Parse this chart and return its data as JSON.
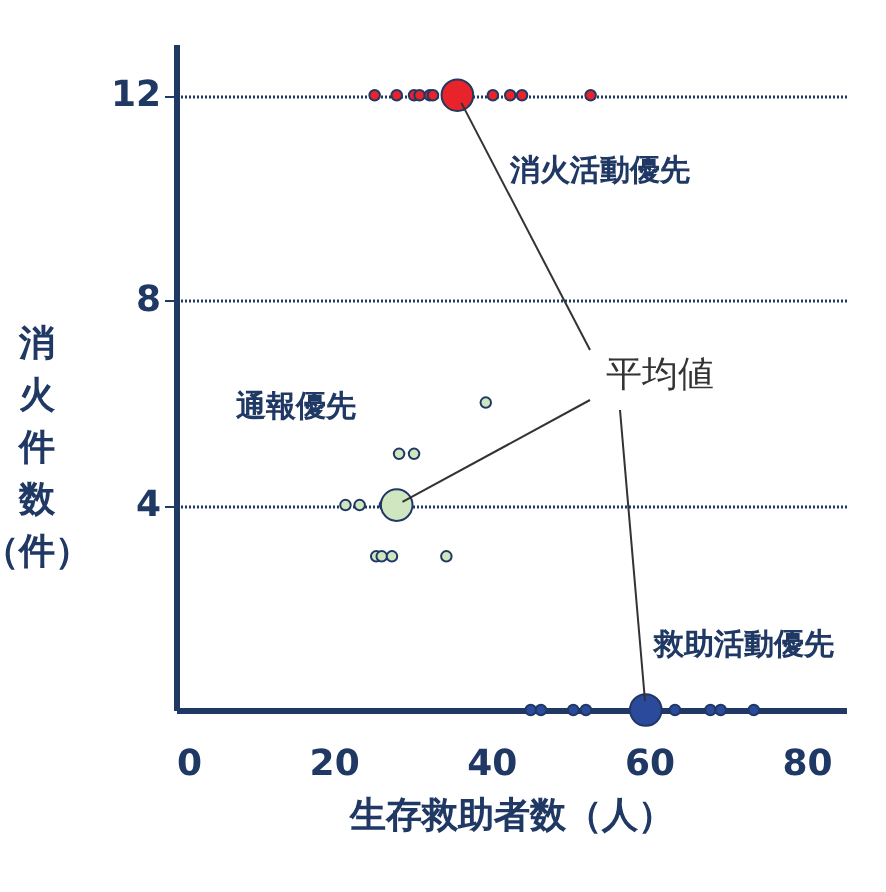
{
  "chart_data": {
    "type": "bubble",
    "xlabel": "生存救助者数（人）",
    "ylabel": "消火件数（件）",
    "xlim": [
      0,
      85
    ],
    "xticks": [
      0,
      20,
      40,
      60,
      80
    ],
    "ylim": [
      0,
      13
    ],
    "yticks": [
      4,
      8,
      12
    ],
    "grid": "y",
    "line_style": "dotted",
    "series": [
      {
        "color": "#e8242a",
        "x": [
          25.2,
          28.0,
          30.2,
          30.9,
          32.2,
          32.6,
          40.2,
          42.4,
          43.9,
          52.6
        ],
        "values": [
          12,
          12,
          12,
          12,
          12,
          12,
          12,
          12,
          12,
          12
        ],
        "sizes": [
          0.11,
          0.11,
          0.11,
          0.11,
          0.11,
          0.11,
          0.11,
          0.11,
          0.11,
          0.11
        ]
      },
      {
        "color": "#e8242a",
        "x": [
          35.7
        ],
        "values": [
          12
        ],
        "sizes": [
          1
        ]
      },
      {
        "color": "#cfe6c1",
        "x": [
          21.5,
          23.3,
          26.5,
          28.3,
          30.2,
          39.3,
          25.4,
          26.1,
          27.4,
          34.3
        ],
        "values": [
          4,
          4,
          4,
          5,
          5,
          6,
          3,
          3,
          3,
          3
        ],
        "sizes": [
          0.11,
          0.11,
          0.11,
          0.11,
          0.11,
          0.11,
          0.11,
          0.11,
          0.11,
          0.11
        ]
      },
      {
        "color": "#cfe6c1",
        "x": [
          28.0
        ],
        "values": [
          4
        ],
        "sizes": [
          1
        ]
      },
      {
        "color": "#2b4a9c",
        "x": [
          45.0,
          46.3,
          50.4,
          52.0,
          63.3,
          67.8,
          69.1,
          73.3
        ],
        "values": [
          0,
          0,
          0,
          0,
          0,
          0,
          0,
          0
        ],
        "sizes": [
          0.11,
          0.11,
          0.11,
          0.11,
          0.11,
          0.11,
          0.11,
          0.11
        ]
      },
      {
        "color": "#2b4a9c",
        "x": [
          59.6
        ],
        "values": [
          0
        ],
        "sizes": [
          1
        ]
      }
    ],
    "annotations": [
      "消火活動優先",
      "通報優先",
      "救助活動優先",
      {
        "text": "平均値",
        "x": 28.0,
        "y": 4
      }
    ]
  }
}
